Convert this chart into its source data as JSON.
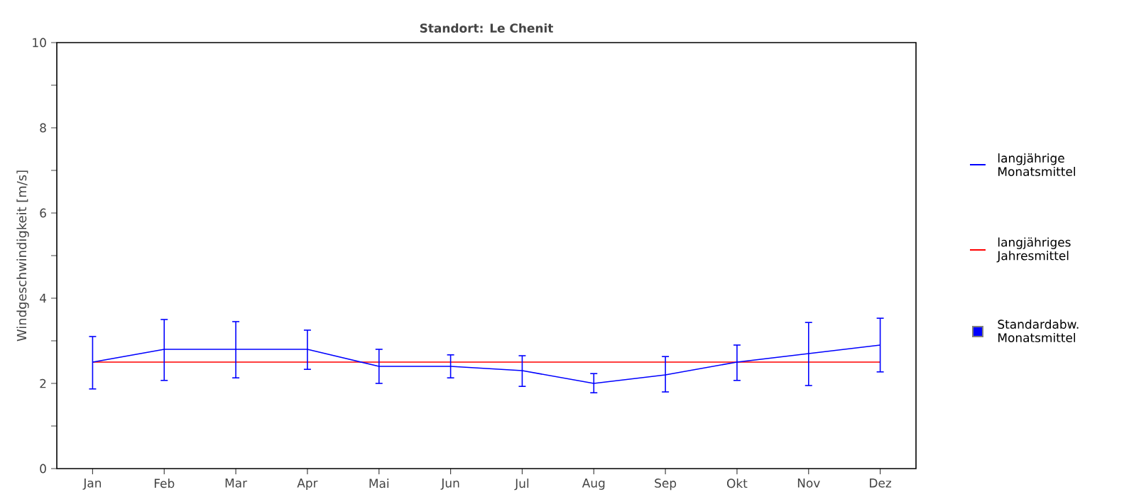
{
  "chart_data": {
    "type": "line",
    "title": "Standort: Le Chenit",
    "ylabel": "Windgeschwindigkeit [m/s]",
    "categories": [
      "Jan",
      "Feb",
      "Mar",
      "Apr",
      "Mai",
      "Jun",
      "Jul",
      "Aug",
      "Sep",
      "Okt",
      "Nov",
      "Dez"
    ],
    "series": [
      {
        "name": "langjährige Monatsmittel",
        "color": "#0000ff",
        "values": [
          2.5,
          2.8,
          2.8,
          2.8,
          2.4,
          2.4,
          2.3,
          2.0,
          2.2,
          2.5,
          2.7,
          2.9
        ],
        "errors": [
          [
            1.87,
            3.1
          ],
          [
            2.07,
            3.5
          ],
          [
            2.13,
            3.45
          ],
          [
            2.33,
            3.25
          ],
          [
            2.0,
            2.8
          ],
          [
            2.13,
            2.67
          ],
          [
            1.93,
            2.65
          ],
          [
            1.78,
            2.23
          ],
          [
            1.8,
            2.63
          ],
          [
            2.07,
            2.9
          ],
          [
            1.95,
            3.43
          ],
          [
            2.27,
            3.53
          ]
        ]
      }
    ],
    "ref_lines": [
      {
        "axis": "y",
        "value": 2.5,
        "label": "langjähriges Jahresmittel",
        "color": "#ff0000"
      }
    ],
    "annotations": [
      "Standardabw. Monatsmittel"
    ],
    "legend": "right",
    "ylim": [
      0,
      10
    ],
    "yticks": [
      0,
      {
        "value": 1,
        "label": null
      },
      2,
      {
        "value": 3,
        "label": null
      },
      4,
      {
        "value": 5,
        "label": null
      },
      6,
      {
        "value": 7,
        "label": null
      },
      8,
      {
        "value": 9,
        "label": null
      },
      10
    ]
  }
}
